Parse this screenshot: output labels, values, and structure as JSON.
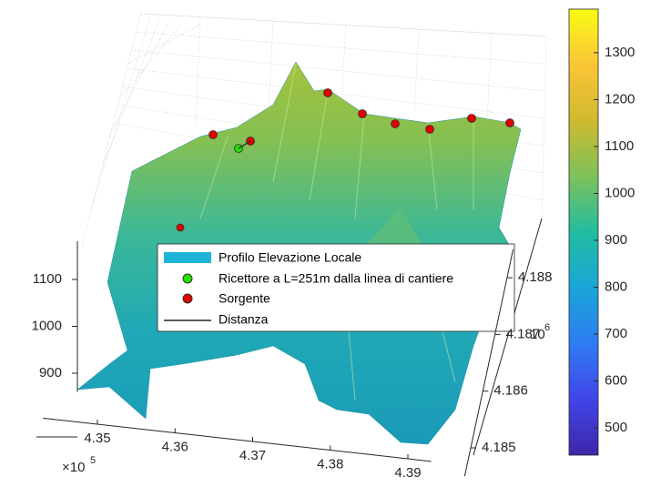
{
  "chart_data": {
    "type": "surface",
    "series": [
      {
        "name": "Profilo Elevazione Locale",
        "color": "#1fb3d6"
      },
      {
        "name": "Ricettore a L=251m dalla linea di cantiere",
        "color": "#22e000"
      },
      {
        "name": "Sorgente",
        "color": "#e00000"
      },
      {
        "name": "Distanza",
        "color": "#262626"
      }
    ],
    "xlim": [
      4.343,
      4.393
    ],
    "xticks": [
      4.35,
      4.36,
      4.37,
      4.38,
      4.39
    ],
    "x_multiplier": "×10",
    "x_exponent": "5",
    "ylim": [
      4.1845,
      4.1885
    ],
    "yticks": [
      4.185,
      4.186,
      4.187,
      4.188
    ],
    "y_multiplier": "10",
    "y_exponent": "6",
    "zlim": [
      860,
      1180
    ],
    "zticks": [
      900,
      1000,
      1100
    ],
    "clim": [
      442,
      1393
    ],
    "cticks": [
      500,
      600,
      700,
      800,
      900,
      1000,
      1100,
      1200,
      1300
    ],
    "colormap": [
      "#3e26a8",
      "#4145e8",
      "#2e7cf2",
      "#1aa6d8",
      "#22bca0",
      "#7dc25a",
      "#d0ba30",
      "#fac537",
      "#f9fb15"
    ],
    "grid": true
  }
}
